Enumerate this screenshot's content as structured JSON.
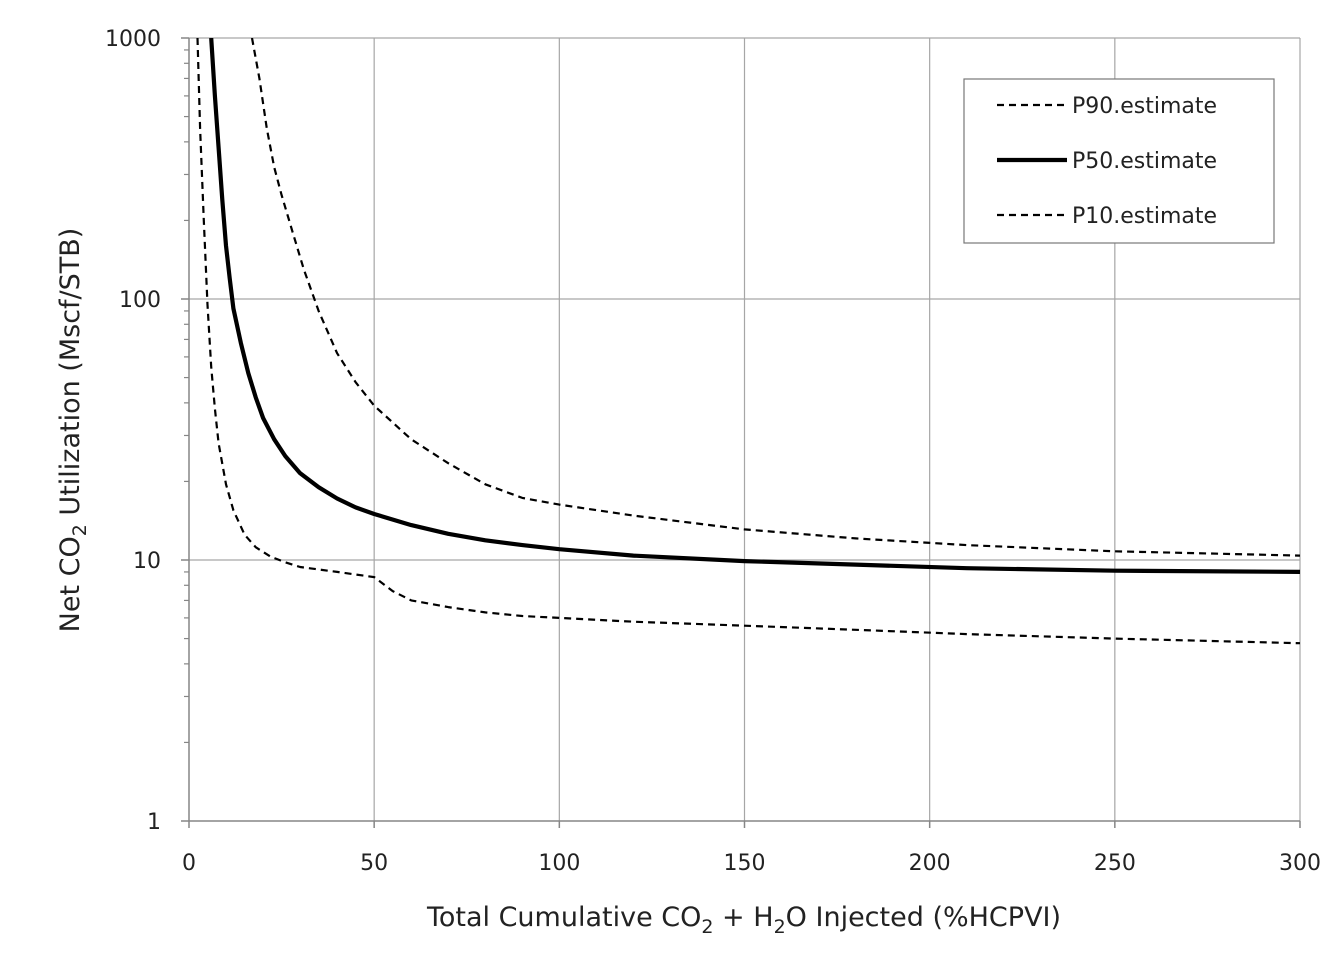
{
  "chart_data": {
    "type": "line",
    "title": "",
    "xlabel_parts": {
      "a": "Total Cumulative CO",
      "sub1": "2",
      "b": " + H",
      "sub2": "2",
      "c": "O Injected (%HCPVI)"
    },
    "ylabel_parts": {
      "a": "Net CO",
      "sub": "2",
      "b": " Utilization (Mscf/STB)"
    },
    "xlim": [
      0,
      300
    ],
    "ylim": [
      1,
      1000
    ],
    "yscale": "log",
    "grid": true,
    "legend_position": "top-right",
    "x_ticks": [
      0,
      50,
      100,
      150,
      200,
      250,
      300
    ],
    "x_tick_labels": [
      "0",
      "50",
      "100",
      "150",
      "200",
      "250",
      "300"
    ],
    "y_ticks": [
      1,
      10,
      100,
      1000
    ],
    "y_tick_labels": [
      "1",
      "10",
      "100",
      "1000"
    ],
    "series": [
      {
        "name": "P90.estimate",
        "style": "dashed",
        "color": "#000000",
        "x": [
          17,
          19,
          21,
          23,
          25,
          28,
          31,
          35,
          40,
          45,
          50,
          60,
          70,
          80,
          90,
          100,
          120,
          150,
          180,
          210,
          250,
          300
        ],
        "y": [
          1000,
          700,
          450,
          320,
          250,
          180,
          130,
          90,
          62,
          48,
          39,
          29,
          23.5,
          19.5,
          17.3,
          16.3,
          14.8,
          13.1,
          12.1,
          11.4,
          10.8,
          10.4
        ]
      },
      {
        "name": "P50.estimate",
        "style": "solid",
        "color": "#000000",
        "x": [
          6,
          7,
          8,
          9,
          10,
          11,
          12,
          14,
          16,
          18,
          20,
          23,
          26,
          30,
          35,
          40,
          45,
          50,
          60,
          70,
          80,
          90,
          100,
          120,
          150,
          180,
          210,
          250,
          300
        ],
        "y": [
          1000,
          600,
          380,
          240,
          160,
          120,
          92,
          68,
          52,
          42,
          35,
          29,
          25,
          21.5,
          19,
          17.2,
          15.9,
          15,
          13.6,
          12.6,
          11.9,
          11.4,
          11,
          10.4,
          9.9,
          9.6,
          9.3,
          9.1,
          9
        ]
      },
      {
        "name": "P10.estimate",
        "style": "dashed",
        "color": "#000000",
        "x": [
          2.3,
          3,
          4,
          5,
          6,
          7,
          8,
          10,
          12,
          15,
          18,
          22,
          26,
          30,
          40,
          50,
          55,
          60,
          70,
          80,
          90,
          100,
          120,
          150,
          180,
          210,
          250,
          300
        ],
        "y": [
          1000,
          450,
          200,
          95,
          55,
          38,
          28,
          19.5,
          15.5,
          12.5,
          11.2,
          10.3,
          9.8,
          9.4,
          9,
          8.6,
          7.6,
          7,
          6.6,
          6.3,
          6.1,
          6,
          5.8,
          5.6,
          5.4,
          5.2,
          5,
          4.8
        ]
      }
    ]
  }
}
